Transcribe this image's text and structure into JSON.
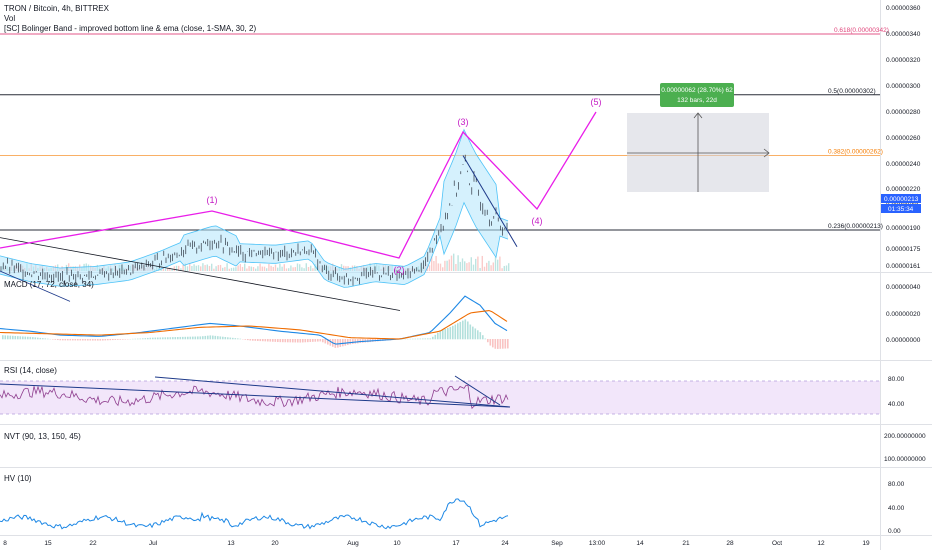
{
  "header": {
    "title": "TRON / Bitcoin, 4h, BITTREX",
    "vol_label": "Vol",
    "indicator": "[SC] Bolinger Band - improved bottom line & ema (close, 1-SMA, 30, 2)"
  },
  "price_pane": {
    "y_ticks": [
      "0.00000360",
      "0.00000340",
      "0.00000320",
      "0.00000300",
      "0.00000280",
      "0.00000260",
      "0.00000240",
      "0.00000220",
      "0.00000205",
      "0.00000190",
      "0.00000175",
      "0.00000161"
    ],
    "current_price": "0.00000213",
    "countdown": "01:35:34",
    "fib_levels": [
      {
        "label": "0.618(0.00000342)",
        "value": 342,
        "color": "#e0457b"
      },
      {
        "label": "0.5(0.00000302)",
        "value": 302,
        "color": "#131722"
      },
      {
        "label": "0.382(0.00000262)",
        "value": 262,
        "color": "#f57c00"
      },
      {
        "label": "0.236(0.00000213)",
        "value": 213,
        "color": "#131722"
      }
    ],
    "wave_labels": [
      "(1)",
      "(2)",
      "(3)",
      "(4)",
      "(5)"
    ],
    "measure": {
      "line1": "0.00000062 (28.70%) 62",
      "line2": "132 bars, 22d"
    }
  },
  "macd_pane": {
    "label": "MACD (17, 72, close, 34)",
    "y_ticks": [
      "0.00000040",
      "0.00000020",
      "0.00000000"
    ]
  },
  "rsi_pane": {
    "label": "RSI (14, close)",
    "y_ticks": [
      "80.00",
      "40.00"
    ]
  },
  "nvt_pane": {
    "label": "NVT (90, 13, 150, 45)",
    "y_ticks": [
      "200.00000000",
      "100.00000000"
    ]
  },
  "hv_pane": {
    "label": "HV (10)",
    "y_ticks": [
      "80.00",
      "40.00",
      "0.00"
    ]
  },
  "x_axis": {
    "labels": [
      "8",
      "15",
      "22",
      "Jul",
      "13",
      "20",
      "Aug",
      "10",
      "17",
      "24",
      "Sep",
      "13:00",
      "14",
      "21",
      "28",
      "Oct",
      "12",
      "19"
    ]
  },
  "colors": {
    "pink_wave": "#e91ee9",
    "bb": "#4fc3f7",
    "macd": "#1e88e5",
    "signal": "#ef6c00",
    "rsi": "#8e3d8e",
    "hv": "#1e88e5"
  },
  "chart_data": {
    "type": "line",
    "title": "TRON / Bitcoin, 4h, BITTREX",
    "x": [
      "8",
      "15",
      "22",
      "Jul",
      "13",
      "20",
      "Aug",
      "10",
      "17",
      "24"
    ],
    "series": [
      {
        "values": [
          190,
          180,
          183,
          192,
          205,
          195,
          185,
          195,
          248,
          213
        ]
      }
    ],
    "ylim": [
      161,
      365
    ]
  }
}
